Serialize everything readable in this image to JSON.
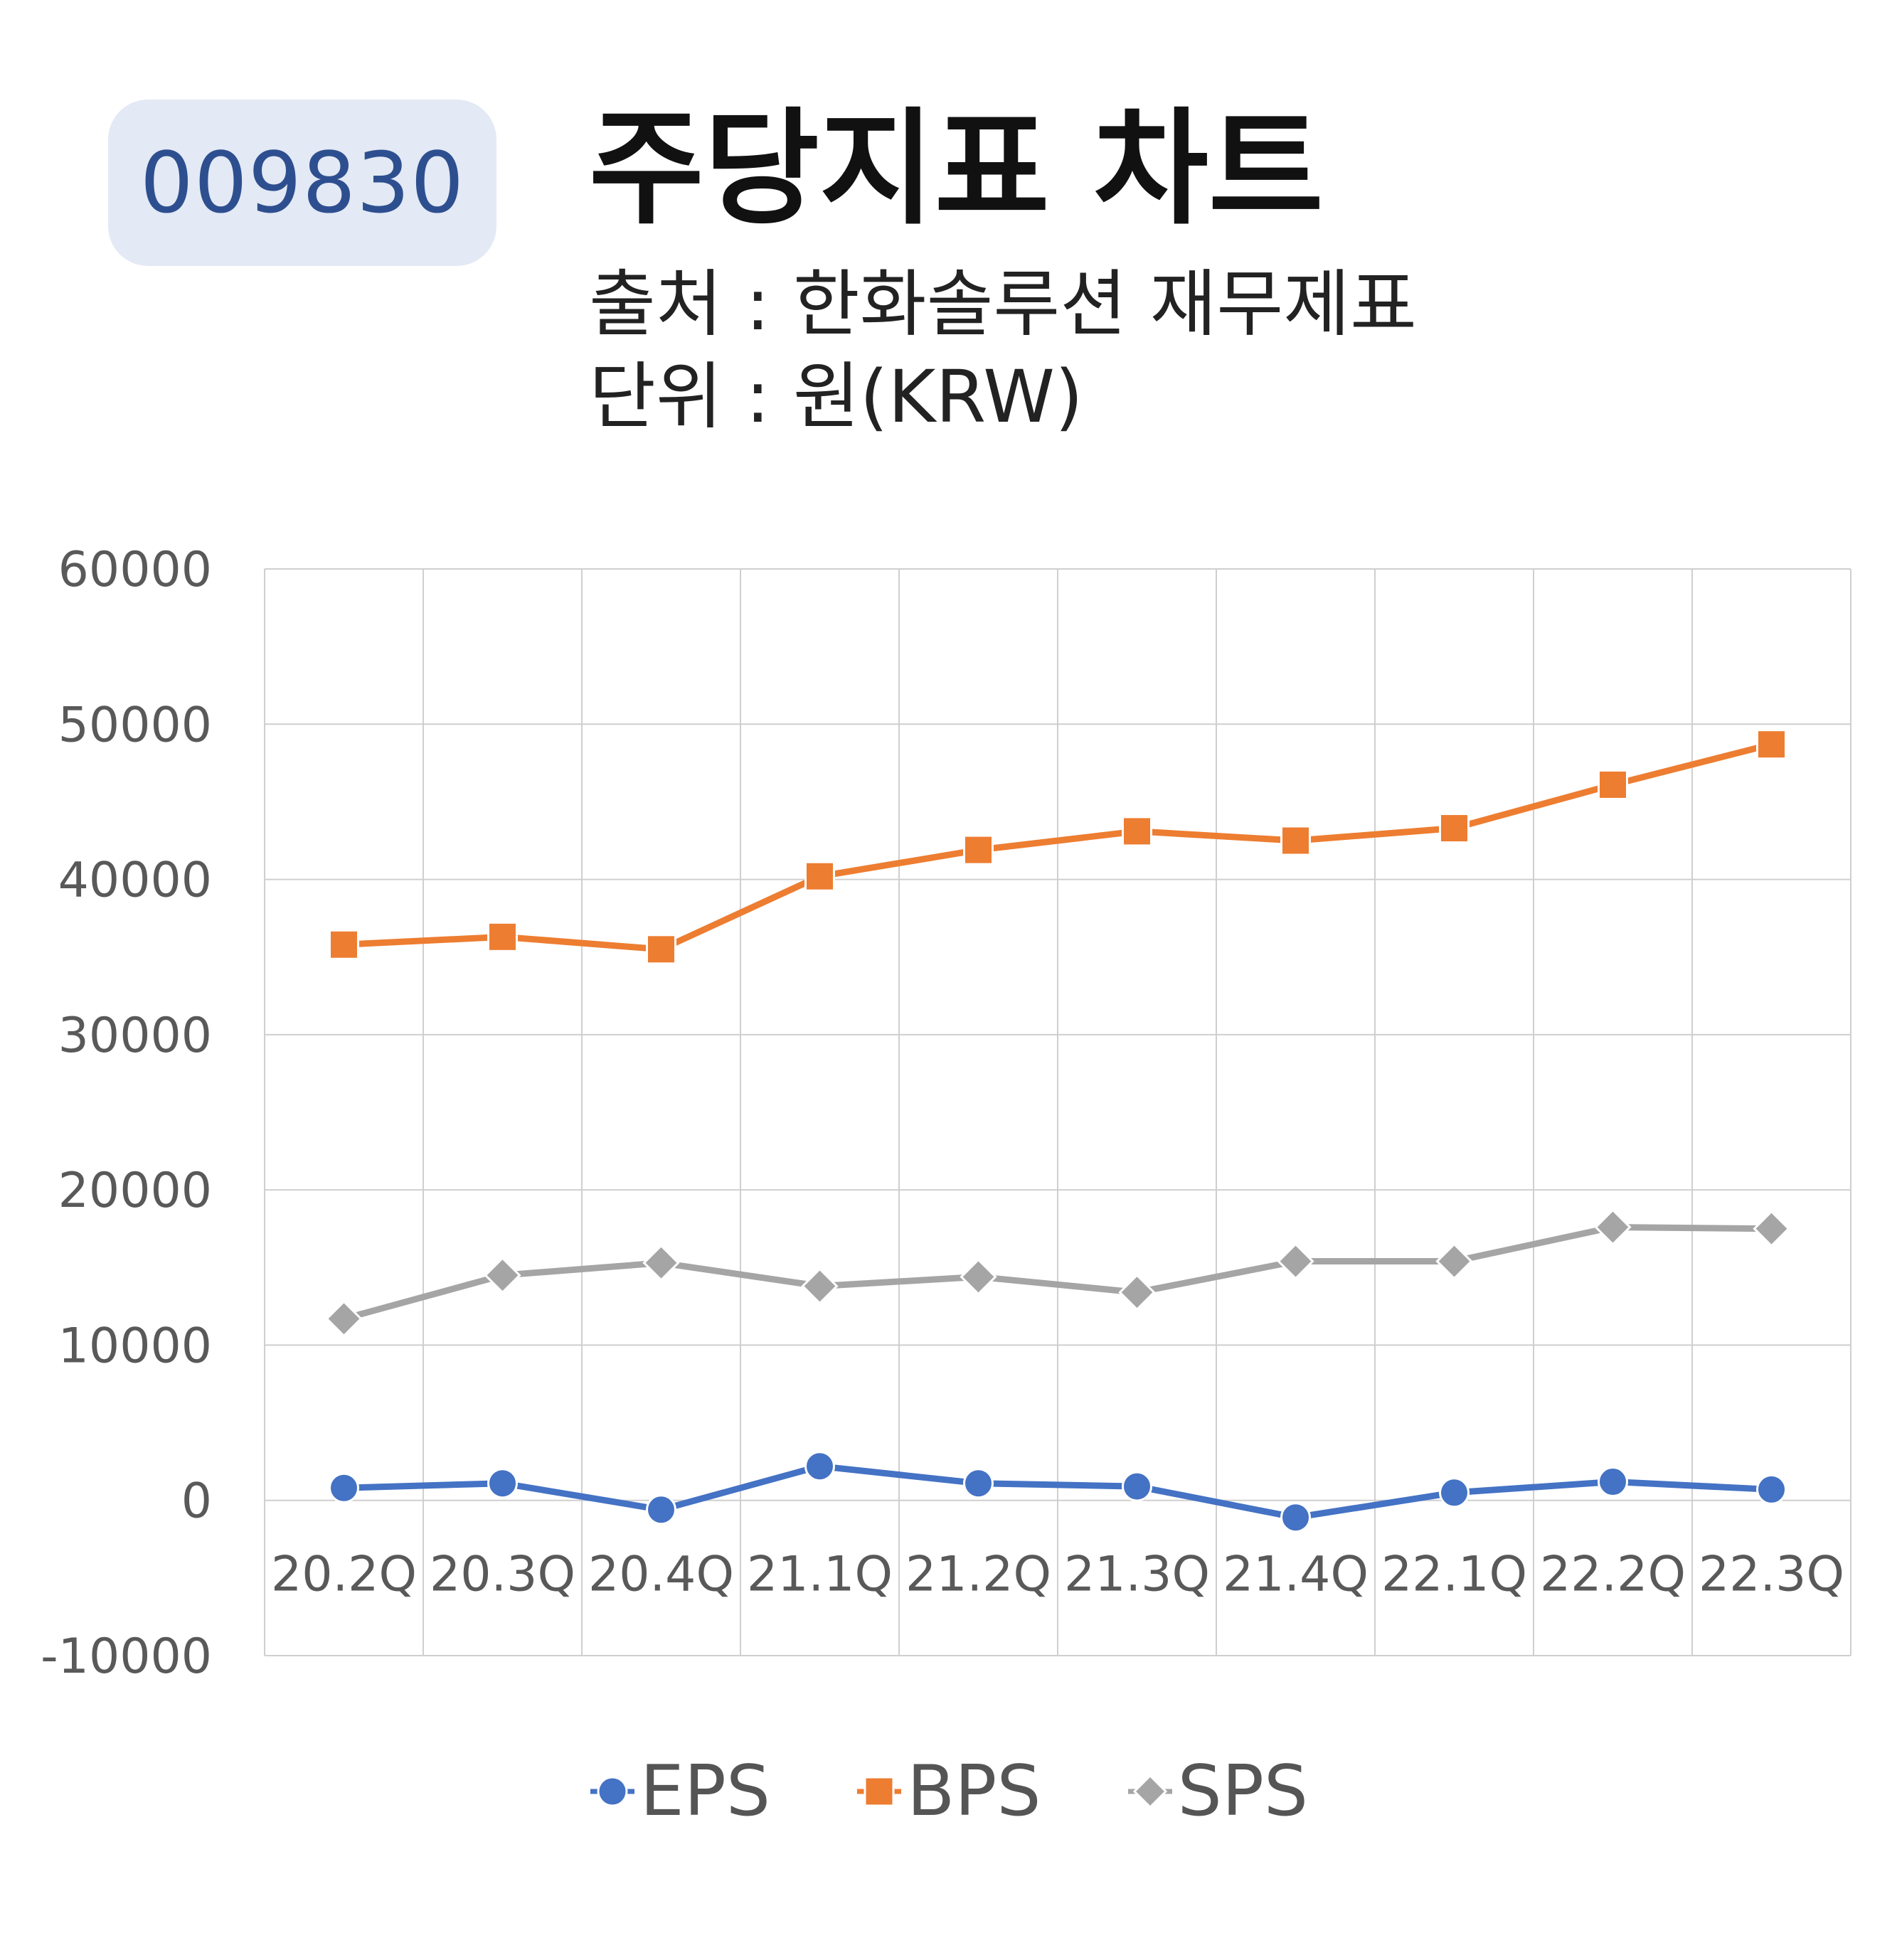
{
  "header": {
    "ticker": "009830",
    "title": "주당지표 차트",
    "source": "출처 : 한화솔루션 재무제표",
    "unit": "단위 : 원(KRW)"
  },
  "chart_data": {
    "type": "line",
    "categories": [
      "20.2Q",
      "20.3Q",
      "20.4Q",
      "21.1Q",
      "21.2Q",
      "21.3Q",
      "21.4Q",
      "22.1Q",
      "22.2Q",
      "22.3Q"
    ],
    "series": [
      {
        "name": "EPS",
        "color": "#4472c4",
        "marker": "circle",
        "values": [
          800,
          1100,
          -600,
          2200,
          1100,
          900,
          -1100,
          500,
          1200,
          700
        ]
      },
      {
        "name": "BPS",
        "color": "#ed7d31",
        "marker": "square",
        "values": [
          35800,
          36300,
          35500,
          40200,
          41900,
          43100,
          42500,
          43300,
          46100,
          48700
        ]
      },
      {
        "name": "SPS",
        "color": "#a5a5a5",
        "marker": "diamond",
        "values": [
          11700,
          14500,
          15300,
          13800,
          14400,
          13400,
          15400,
          15400,
          17600,
          17500
        ]
      }
    ],
    "ylim": [
      -10000,
      60000
    ],
    "yticks": [
      "60000",
      "50000",
      "40000",
      "30000",
      "20000",
      "10000",
      "0",
      "-10000"
    ],
    "grid": true,
    "legend_position": "bottom"
  }
}
